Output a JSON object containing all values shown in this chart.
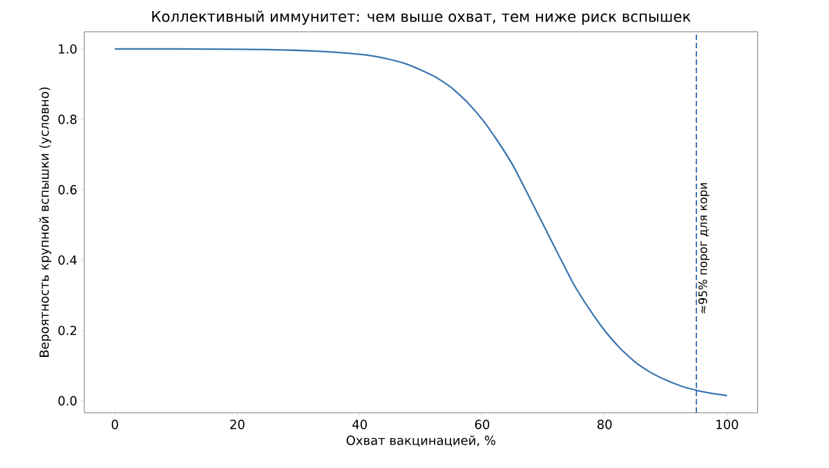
{
  "chart_data": {
    "type": "line",
    "title": "Коллективный иммунитет: чем выше охват, тем ниже риск вспышек",
    "xlabel": "Охват вакцинацией, %",
    "ylabel": "Вероятность крупной вспышки (условно)",
    "x": [
      0,
      10,
      20,
      25,
      30,
      35,
      40,
      42.5,
      45,
      47.5,
      50,
      52.5,
      55,
      57.5,
      60,
      62.5,
      65,
      67.5,
      70,
      72.5,
      75,
      77.5,
      80,
      82.5,
      85,
      87.5,
      90,
      92.5,
      95,
      97.5,
      100
    ],
    "series": [
      {
        "color": "#3a76b0",
        "line_style": "solid",
        "values": [
          1.0,
          1.0,
          0.999,
          0.998,
          0.996,
          0.992,
          0.985,
          0.979,
          0.97,
          0.958,
          0.94,
          0.919,
          0.89,
          0.85,
          0.8,
          0.739,
          0.67,
          0.586,
          0.5,
          0.414,
          0.33,
          0.261,
          0.2,
          0.15,
          0.11,
          0.081,
          0.059,
          0.042,
          0.03,
          0.021,
          0.015
        ]
      }
    ],
    "xlim": [
      -5,
      105
    ],
    "ylim": [
      -0.034,
      1.049
    ],
    "xticks": [
      0,
      20,
      40,
      60,
      80,
      100
    ],
    "yticks": [
      {
        "value": 0,
        "label": "0.0"
      },
      {
        "value": 0.2,
        "label": "0.2"
      },
      {
        "value": 0.4,
        "label": "0.4"
      },
      {
        "value": 0.6,
        "label": "0.6"
      },
      {
        "value": 0.8,
        "label": "0.8"
      },
      {
        "value": 1,
        "label": "1.0"
      }
    ],
    "ref_lines": [
      {
        "axis": "x",
        "value": 95,
        "label": "≈95% порог для кори",
        "color": "#3a76b0",
        "line_style": "dashed"
      }
    ],
    "grid": false,
    "marker": "none"
  }
}
